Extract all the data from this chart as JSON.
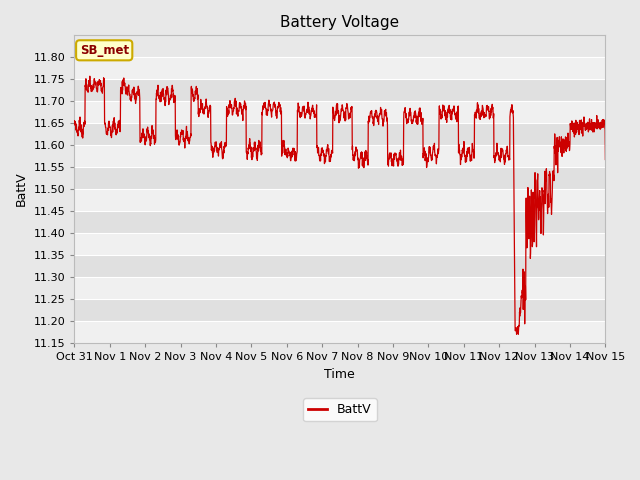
{
  "title": "Battery Voltage",
  "xlabel": "Time",
  "ylabel": "BattV",
  "legend_label": "BattV",
  "ylim": [
    11.15,
    11.85
  ],
  "yticks": [
    11.15,
    11.2,
    11.25,
    11.3,
    11.35,
    11.4,
    11.45,
    11.5,
    11.55,
    11.6,
    11.65,
    11.7,
    11.75,
    11.8
  ],
  "xtick_labels": [
    "Oct 31",
    "Nov 1",
    "Nov 2",
    "Nov 3",
    "Nov 4",
    "Nov 5",
    "Nov 6",
    "Nov 7",
    "Nov 8",
    "Nov 9",
    "Nov 10",
    "Nov 11",
    "Nov 12",
    "Nov 13",
    "Nov 14",
    "Nov 15"
  ],
  "line_color": "#cc0000",
  "fig_bg_color": "#e8e8e8",
  "plot_bg_color": "#e8e8e8",
  "band_color_light": "#f0f0f0",
  "band_color_dark": "#e0e0e0",
  "grid_color": "#d8d8d8",
  "annotation_text": "SB_met",
  "annotation_bg": "#ffffcc",
  "annotation_border": "#ccaa00"
}
